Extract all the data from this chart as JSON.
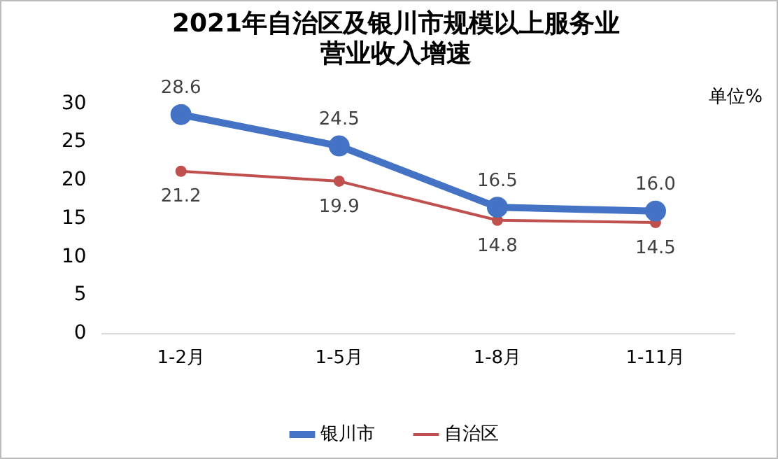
{
  "chart_data": {
    "type": "line",
    "title": "2021年自治区及银川市规模以上服务业营业收入增速",
    "ylabel": "单位%",
    "categories": [
      "1-2月",
      "1-5月",
      "1-8月",
      "1-11月"
    ],
    "series": [
      {
        "name": "银川市",
        "color": "#4472c4",
        "values": [
          28.6,
          24.5,
          16.5,
          16.0
        ],
        "value_labels": [
          "28.6",
          "24.5",
          "16.5",
          "16.0"
        ]
      },
      {
        "name": "自治区",
        "color": "#c0504d",
        "values": [
          21.2,
          19.9,
          14.8,
          14.5
        ],
        "value_labels": [
          "21.2",
          "19.9",
          "14.8",
          "14.5"
        ]
      }
    ],
    "ylim": [
      0,
      30
    ],
    "yticks": [
      0,
      5,
      10,
      15,
      20,
      25,
      30
    ],
    "grid": false,
    "legend": "bottom",
    "marker": "circle",
    "line_style": "solid"
  }
}
